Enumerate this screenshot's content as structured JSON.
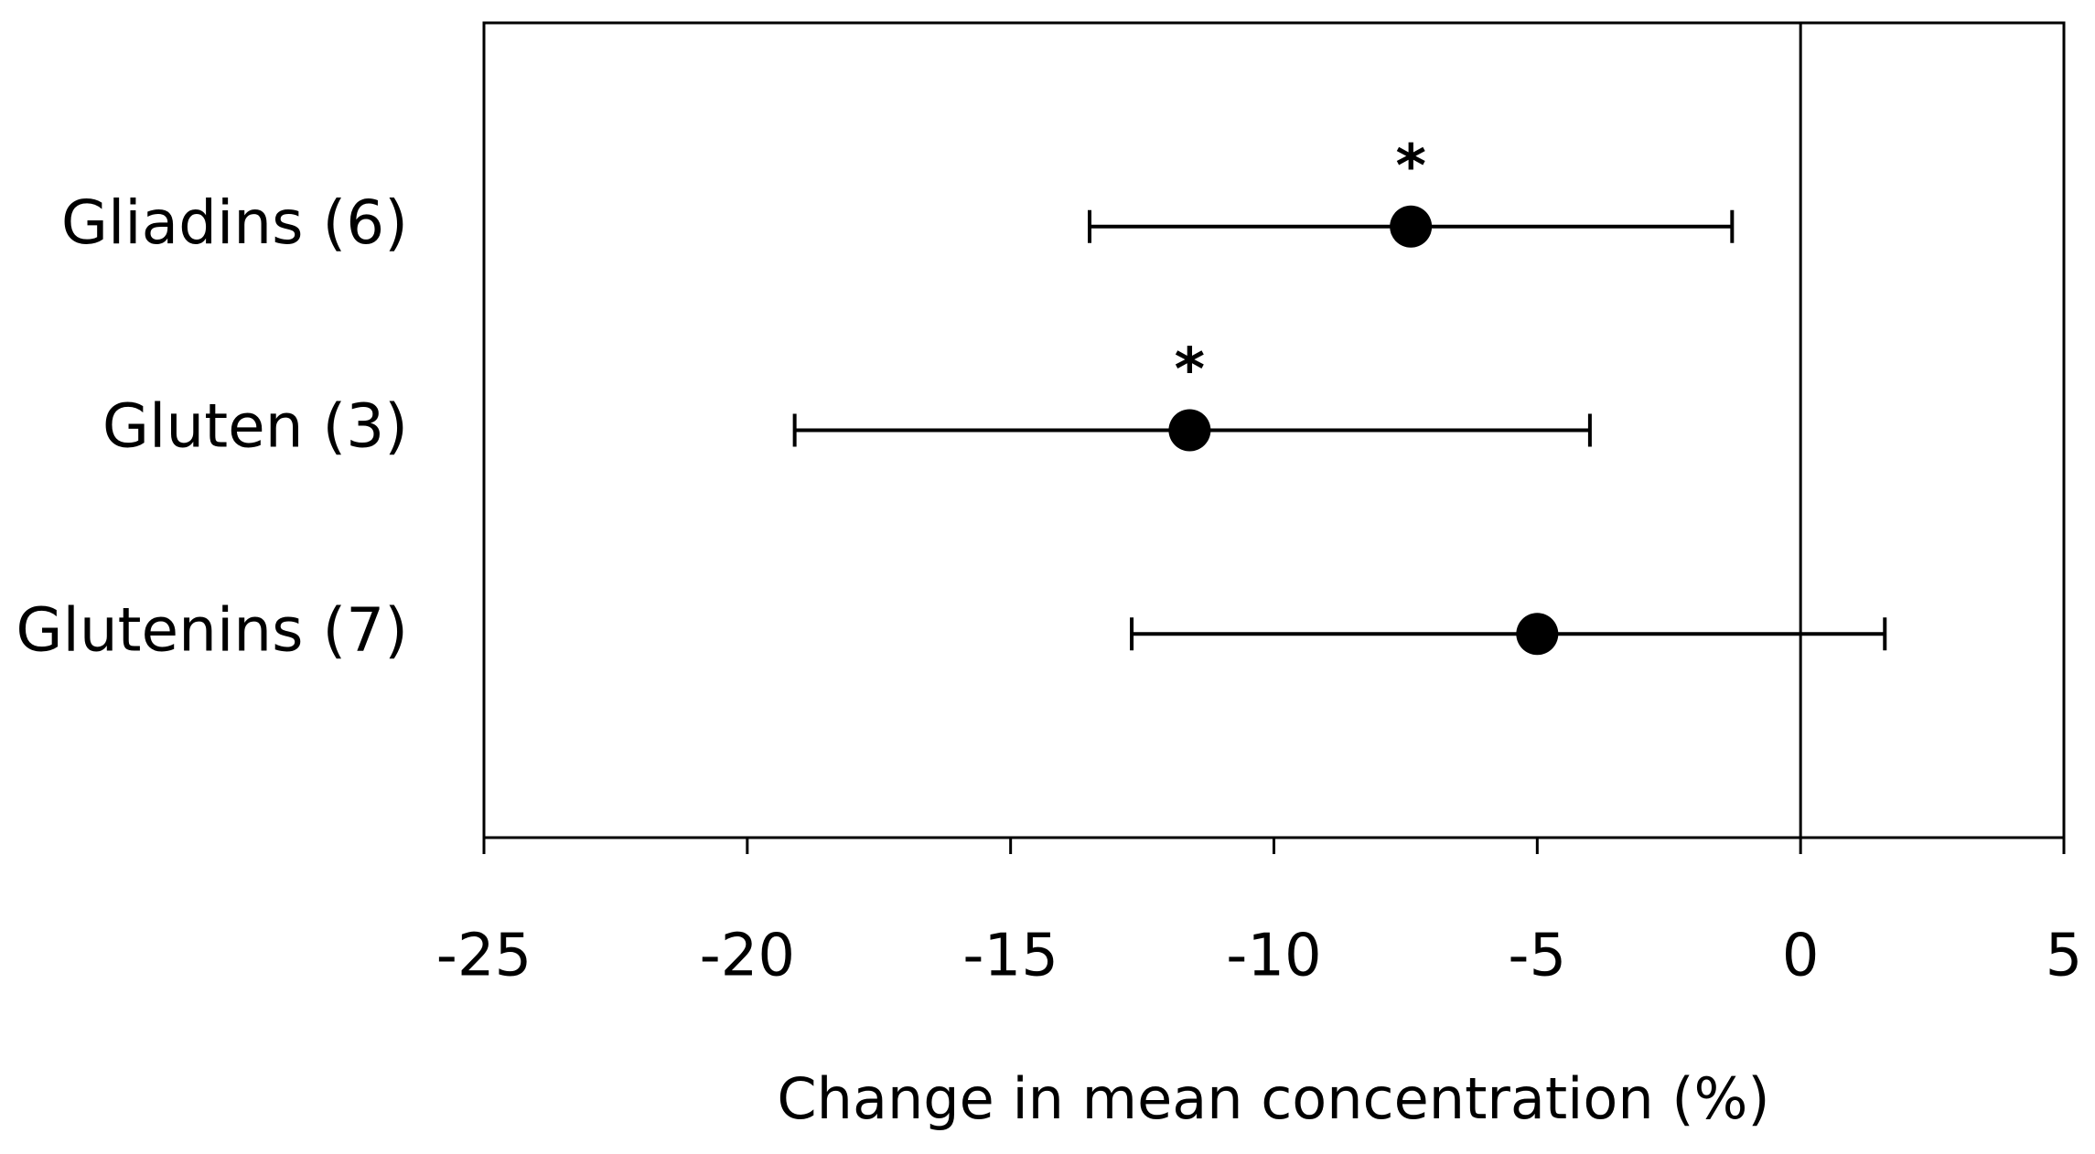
{
  "chart_data": {
    "type": "forest",
    "xlabel": "Change in mean concentration (%)",
    "categories": [
      "Gliadins (6)",
      "Gluten (3)",
      "Glutenins (7)"
    ],
    "series": [
      {
        "color": "#000000",
        "values": [
          -7.4,
          -11.6,
          -5.0
        ],
        "lower": [
          -13.5,
          -19.1,
          -12.7
        ],
        "upper": [
          -1.3,
          -4.0,
          1.6
        ]
      }
    ],
    "annotations": [
      "*",
      "*",
      null
    ],
    "reference_x": 0,
    "xlim": [
      -25,
      5
    ],
    "xticks": [
      -25,
      -20,
      -15,
      -10,
      -5,
      0,
      5
    ]
  }
}
